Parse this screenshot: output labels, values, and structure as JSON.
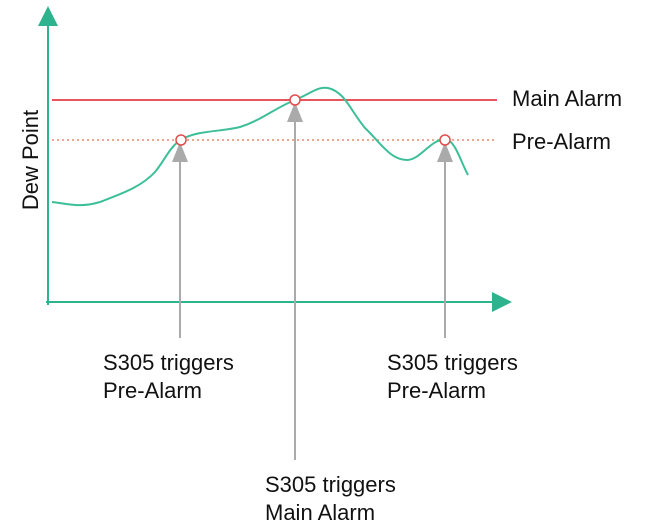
{
  "axis_label": "Dew Point",
  "thresholds": [
    {
      "label": "Main Alarm"
    },
    {
      "label": "Pre-Alarm"
    }
  ],
  "annotations": [
    {
      "lines": [
        "S305 triggers",
        "Pre-Alarm"
      ]
    },
    {
      "lines": [
        "S305 triggers",
        "Main Alarm"
      ]
    },
    {
      "lines": [
        "S305 triggers",
        "Pre-Alarm"
      ]
    }
  ]
}
